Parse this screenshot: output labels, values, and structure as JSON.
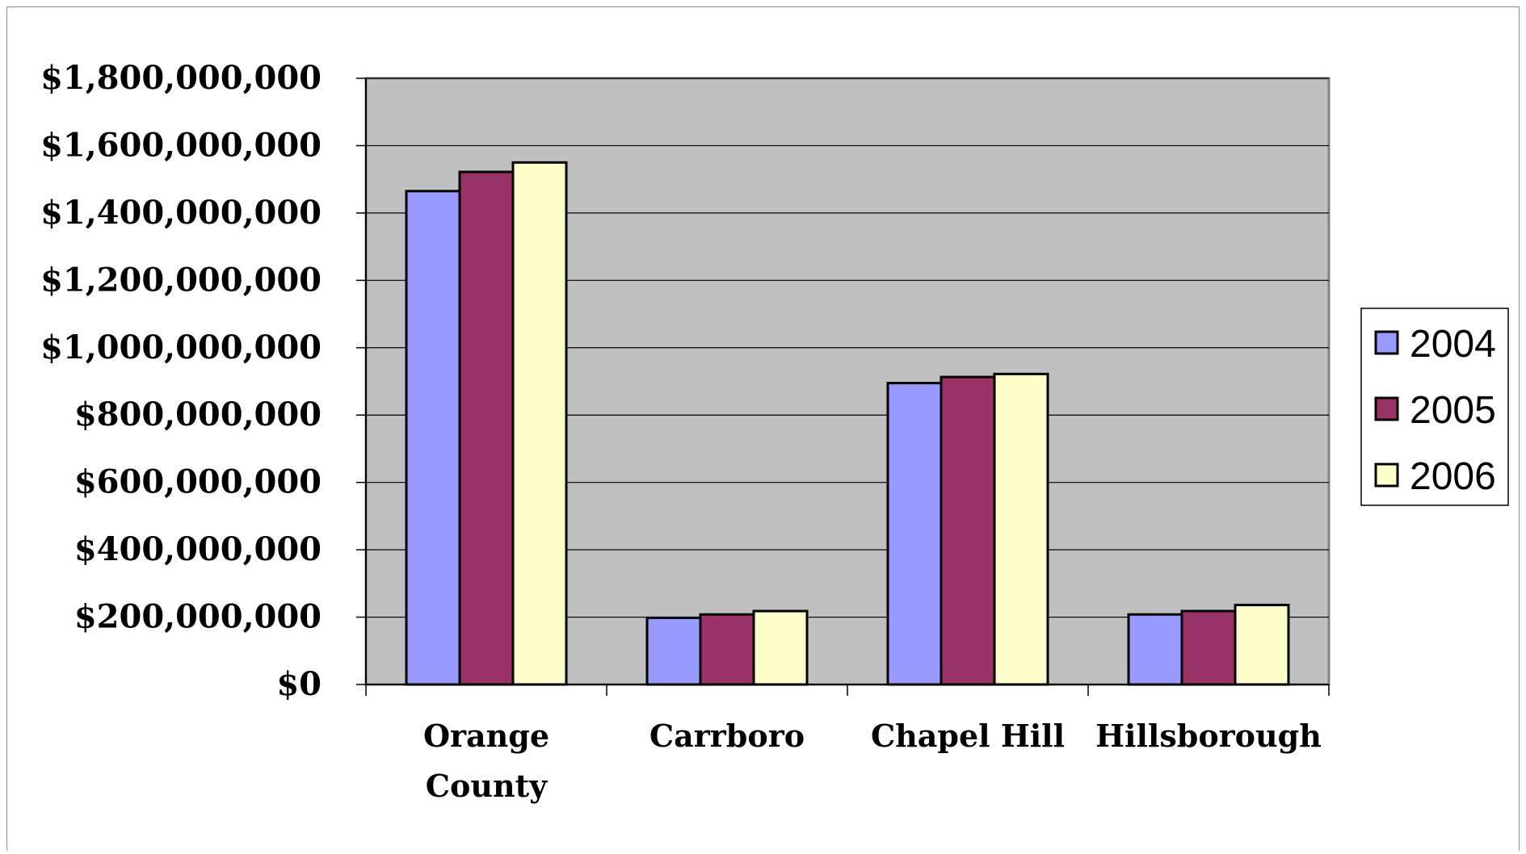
{
  "chart_data": {
    "type": "bar",
    "title": "",
    "xlabel": "",
    "ylabel": "",
    "categories": [
      [
        "Orange",
        "County"
      ],
      [
        "Carrboro"
      ],
      [
        "Chapel Hill"
      ],
      [
        "Hillsborough"
      ]
    ],
    "series": [
      {
        "name": "2004",
        "color": "#9999ff",
        "values": [
          1465000000,
          198000000,
          895000000,
          208000000
        ]
      },
      {
        "name": "2005",
        "color": "#993366",
        "values": [
          1522000000,
          208000000,
          913000000,
          218000000
        ]
      },
      {
        "name": "2006",
        "color": "#ffffcc",
        "values": [
          1550000000,
          218000000,
          922000000,
          236000000
        ]
      }
    ],
    "ylim": [
      0,
      1800000000
    ],
    "yticks": [
      0,
      200000000,
      400000000,
      600000000,
      800000000,
      1000000000,
      1200000000,
      1400000000,
      1600000000,
      1800000000
    ],
    "ytick_labels": [
      "$0",
      "$200,000,000",
      "$400,000,000",
      "$600,000,000",
      "$800,000,000",
      "$1,000,000,000",
      "$1,200,000,000",
      "$1,400,000,000",
      "$1,600,000,000",
      "$1,800,000,000"
    ],
    "grid": true,
    "plot_background": "#c0c0c0",
    "legend_position": "right"
  }
}
